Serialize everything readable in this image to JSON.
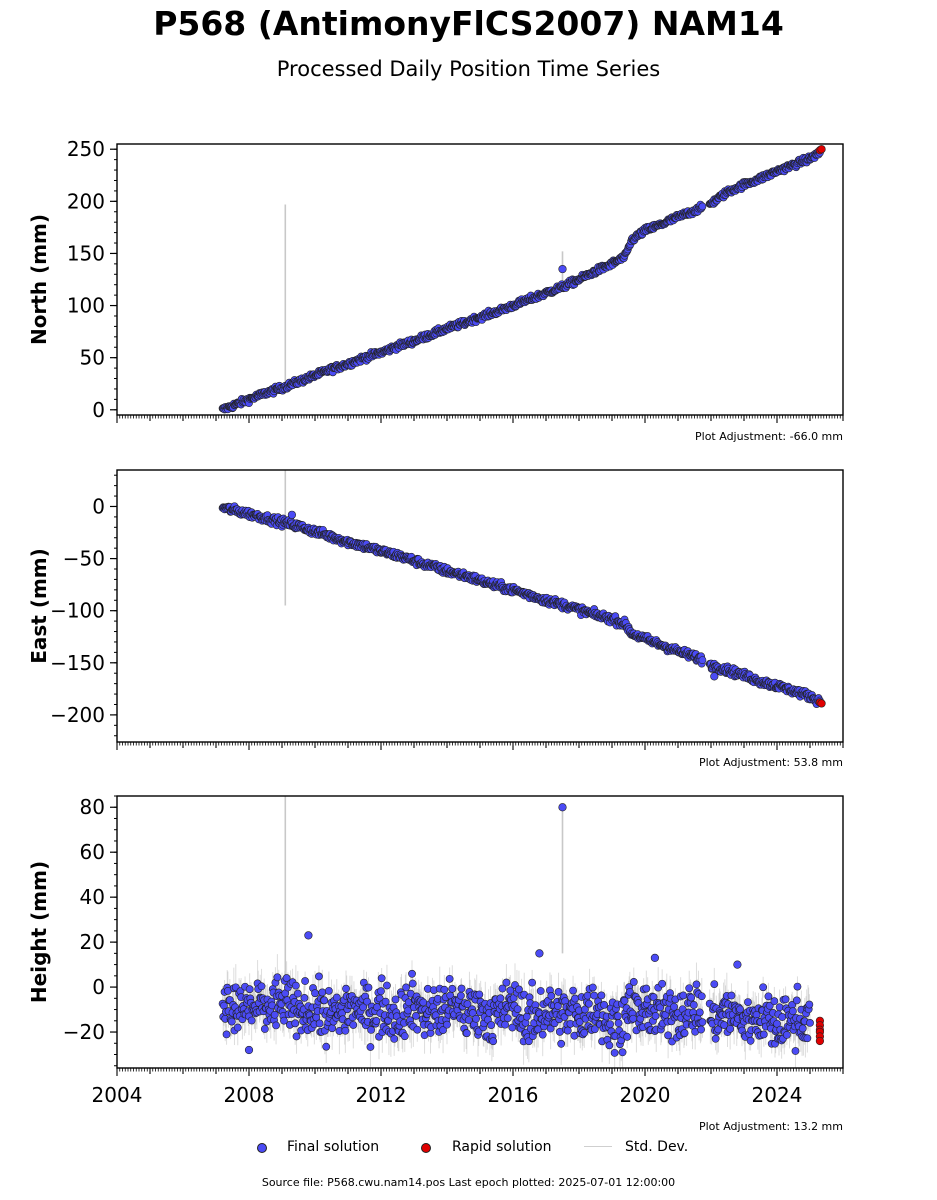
{
  "title": "P568 (AntimonyFlCS2007) NAM14",
  "subtitle": "Processed Daily Position Time Series",
  "colors": {
    "final": "#4b4bf5",
    "rapid": "#e00000",
    "std": "#cfcfcf",
    "edge": "#222222"
  },
  "legend": {
    "final": "Final solution",
    "rapid": "Rapid solution",
    "std": "Std. Dev."
  },
  "source": "Source file: P568.cwu.nam14.pos  Last epoch plotted: 2025-07-01 12:00:00",
  "chart_data": [
    {
      "type": "scatter",
      "component": "north",
      "ylabel": "North (mm)",
      "adjustment_label": "Plot Adjustment: -66.0 mm",
      "xlim": [
        2004,
        2026
      ],
      "ylim": [
        -5,
        255
      ],
      "yticks": [
        0,
        50,
        100,
        150,
        200,
        250
      ],
      "series": [
        {
          "x": [
            2007.2,
            2007.6,
            2008.0,
            2008.5,
            2009.0,
            2009.5,
            2010.0,
            2010.5,
            2011.0,
            2011.5,
            2012.0,
            2012.5,
            2013.0,
            2013.5,
            2014.0,
            2014.5,
            2015.0,
            2015.5,
            2016.0,
            2016.5,
            2017.0,
            2017.5,
            2018.0,
            2018.5,
            2019.0,
            2019.4,
            2019.6,
            2020.0,
            2020.5,
            2021.0,
            2021.5,
            2021.8,
            2022.0,
            2022.5,
            2023.0,
            2023.5,
            2024.0,
            2024.5,
            2025.0,
            2025.3
          ],
          "y": [
            0,
            5,
            10,
            16,
            21,
            27,
            33,
            39,
            44,
            50,
            55,
            61,
            66,
            72,
            78,
            83,
            89,
            94,
            100,
            106,
            112,
            118,
            125,
            133,
            140,
            147,
            163,
            172,
            178,
            185,
            191,
            195,
            198,
            209,
            216,
            222,
            229,
            235,
            241,
            247
          ]
        },
        {
          "x": [
            2017.5
          ],
          "y": [
            135
          ]
        }
      ],
      "rapid": {
        "x": [
          2025.3,
          2025.35
        ],
        "y": [
          249,
          250
        ]
      },
      "std_spikes": [
        {
          "x": 2009.1,
          "y0": 20,
          "y1": 197
        },
        {
          "x": 2017.5,
          "y0": 118,
          "y1": 152
        }
      ]
    },
    {
      "type": "scatter",
      "component": "east",
      "ylabel": "East (mm)",
      "adjustment_label": "Plot Adjustment: 53.8 mm",
      "xlim": [
        2004,
        2026
      ],
      "ylim": [
        -226,
        35
      ],
      "yticks": [
        0,
        -50,
        -100,
        -150,
        -200
      ],
      "series": [
        {
          "x": [
            2007.2,
            2007.6,
            2008.0,
            2008.5,
            2009.0,
            2009.5,
            2010.0,
            2010.5,
            2011.0,
            2011.5,
            2012.0,
            2012.5,
            2013.0,
            2013.5,
            2014.0,
            2014.5,
            2015.0,
            2015.5,
            2016.0,
            2016.5,
            2017.0,
            2017.5,
            2018.0,
            2018.5,
            2019.0,
            2019.4,
            2019.6,
            2020.0,
            2020.5,
            2021.0,
            2021.5,
            2021.8,
            2022.0,
            2022.5,
            2023.0,
            2023.5,
            2024.0,
            2024.5,
            2025.0,
            2025.3
          ],
          "y": [
            -1,
            -4,
            -7,
            -11,
            -15,
            -19,
            -24,
            -29,
            -34,
            -38,
            -43,
            -47,
            -52,
            -57,
            -62,
            -66,
            -71,
            -76,
            -80,
            -85,
            -90,
            -94,
            -99,
            -104,
            -108,
            -113,
            -122,
            -127,
            -133,
            -139,
            -144,
            -148,
            -152,
            -157,
            -162,
            -168,
            -172,
            -177,
            -182,
            -187
          ]
        },
        {
          "x": [
            2009.3,
            2022.1
          ],
          "y": [
            -8,
            -163
          ]
        }
      ],
      "rapid": {
        "x": [
          2025.3,
          2025.35
        ],
        "y": [
          -188,
          -189
        ]
      },
      "std_spikes": [
        {
          "x": 2009.1,
          "y0": -95,
          "y1": 35
        }
      ]
    },
    {
      "type": "scatter",
      "component": "height",
      "ylabel": "Height (mm)",
      "adjustment_label": "Plot Adjustment: 13.2 mm",
      "xlim": [
        2004,
        2026
      ],
      "xticks": [
        2004,
        2008,
        2012,
        2016,
        2020,
        2024
      ],
      "ylim": [
        -36,
        85
      ],
      "yticks": [
        80,
        60,
        40,
        20,
        0,
        -20
      ],
      "series": [
        {
          "x": [
            2007.2,
            2007.6,
            2008.0,
            2008.5,
            2009.0,
            2009.5,
            2010.0,
            2010.5,
            2011.0,
            2011.5,
            2012.0,
            2012.5,
            2013.0,
            2013.5,
            2014.0,
            2014.5,
            2015.0,
            2015.5,
            2016.0,
            2016.5,
            2017.0,
            2017.5,
            2018.0,
            2018.5,
            2019.0,
            2019.5,
            2020.0,
            2020.5,
            2021.0,
            2021.5,
            2022.0,
            2022.5,
            2023.0,
            2023.5,
            2024.0,
            2024.5,
            2025.0
          ],
          "y": [
            -5,
            -12,
            -8,
            -10,
            -6,
            -12,
            -9,
            -14,
            -8,
            -11,
            -10,
            -12,
            -7,
            -13,
            -9,
            -11,
            -10,
            -14,
            -8,
            -15,
            -10,
            -12,
            -13,
            -9,
            -17,
            -11,
            -10,
            -13,
            -12,
            -9,
            -14,
            -11,
            -16,
            -12,
            -18,
            -14,
            -13
          ]
        },
        {
          "x": [
            2009.8,
            2017.5,
            2016.8,
            2020.3,
            2022.8,
            2008.0
          ],
          "y": [
            23,
            80,
            15,
            13,
            10,
            -28
          ]
        }
      ],
      "rapid": {
        "x": [
          2025.3,
          2025.3,
          2025.3,
          2025.3,
          2025.3,
          2025.3
        ],
        "y": [
          -15,
          -17,
          -19,
          -20,
          -22,
          -24
        ]
      },
      "std_spikes": [
        {
          "x": 2009.1,
          "y0": 0,
          "y1": 85
        },
        {
          "x": 2017.5,
          "y0": 15,
          "y1": 80
        }
      ]
    }
  ]
}
